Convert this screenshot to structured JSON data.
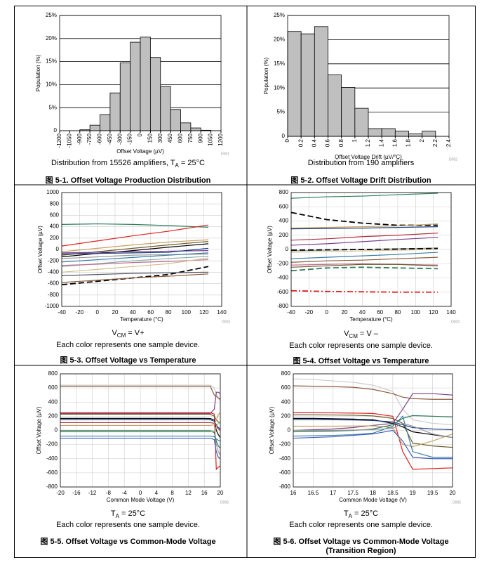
{
  "chart_data": [
    {
      "type": "histogram",
      "title": "图 5-1. Offset Voltage Production Distribution",
      "caption": [
        "Distribution from 15526 amplifiers, T",
        "A",
        " = 25°C"
      ],
      "xlabel": "Offset Voltage (µV)",
      "ylabel": "Population (%)",
      "watermark": "D001",
      "bins": [
        -1200,
        -1050,
        -900,
        -750,
        -600,
        -450,
        -300,
        -150,
        0,
        150,
        300,
        450,
        600,
        750,
        900,
        1050,
        1200
      ],
      "values": [
        0,
        0,
        0.2,
        1.2,
        3.5,
        8.2,
        14.7,
        19.2,
        20.3,
        15.9,
        9.6,
        4.6,
        1.7,
        0.6,
        0.1,
        0
      ],
      "color": "#bfbfbf",
      "grid": "y",
      "xlim": [
        -1200,
        1200
      ],
      "xticks": [
        -1200,
        -1050,
        -900,
        -750,
        -600,
        -450,
        -300,
        -150,
        0,
        150,
        300,
        450,
        600,
        750,
        900,
        1050,
        1200
      ],
      "ylim": [
        0,
        25
      ],
      "yticks": [
        0,
        {
          "value": 5,
          "label": "5%"
        },
        {
          "value": 10,
          "label": "10%"
        },
        {
          "value": 15,
          "label": "15%"
        },
        {
          "value": 20,
          "label": "20%"
        },
        {
          "value": 25,
          "label": "25%"
        }
      ]
    },
    {
      "type": "histogram",
      "title": "图 5-2. Offset Voltage Drift Distribution",
      "caption": [
        "Distribution from 190 amplifiers"
      ],
      "xlabel": "Offset Voltage Drift (µV/°C)",
      "ylabel": "Population (%)",
      "watermark": "D002",
      "bins": [
        0,
        0.2,
        0.4,
        0.6,
        0.8,
        1,
        1.2,
        1.4,
        1.6,
        1.8,
        2,
        2.2,
        2.4
      ],
      "values": [
        21.7,
        21.2,
        22.7,
        12.7,
        10.1,
        5.8,
        1.6,
        1.6,
        1.1,
        0.5,
        1.1,
        0
      ],
      "color": "#bfbfbf",
      "grid": "y",
      "xlim": [
        0,
        2.4
      ],
      "xticks": [
        0,
        0.2,
        0.4,
        0.6,
        0.8,
        1,
        1.2,
        1.4,
        1.6,
        1.8,
        2,
        2.2,
        2.4
      ],
      "ylim": [
        0,
        25
      ],
      "yticks": [
        0,
        {
          "value": 5,
          "label": "5%"
        },
        {
          "value": 10,
          "label": "10%"
        },
        {
          "value": 15,
          "label": "15%"
        },
        {
          "value": 20,
          "label": "20%"
        },
        {
          "value": 25,
          "label": "25%"
        }
      ]
    },
    {
      "type": "line",
      "title": "图 5-3. Offset Voltage vs Temperature",
      "caption": [
        "V",
        "CM",
        " = V+"
      ],
      "note": "Each color represents one sample device.",
      "xlabel": "Temperature (°C)",
      "ylabel": "Offset Voltage (µV)",
      "watermark": "D003",
      "grid": "both",
      "xlim": [
        -40,
        140
      ],
      "xticks": [
        -40,
        -20,
        0,
        20,
        40,
        60,
        80,
        100,
        120,
        140
      ],
      "ylim": [
        -1000,
        1000
      ],
      "yticks": [
        -1000,
        -800,
        -600,
        -400,
        -200,
        0,
        200,
        400,
        600,
        800,
        1000
      ],
      "x": [
        -40,
        0,
        40,
        80,
        125
      ],
      "series": [
        {
          "color": "#2e7d5b",
          "values": [
            440,
            450,
            440,
            420,
            390
          ]
        },
        {
          "color": "#e02020",
          "values": [
            60,
            150,
            240,
            320,
            430
          ]
        },
        {
          "color": "#c8a060",
          "values": [
            -40,
            20,
            80,
            130,
            170
          ]
        },
        {
          "color": "#6b5a2a",
          "values": [
            -100,
            -40,
            20,
            80,
            140
          ]
        },
        {
          "color": "#000000",
          "values": [
            -130,
            -70,
            -20,
            40,
            100
          ]
        },
        {
          "color": "#7b3f8c",
          "values": [
            -60,
            -50,
            -40,
            -30,
            -20
          ]
        },
        {
          "color": "#1f3f7f",
          "values": [
            -80,
            -70,
            -60,
            -50,
            20
          ]
        },
        {
          "color": "#999999",
          "values": [
            -160,
            -130,
            -100,
            -90,
            -80
          ]
        },
        {
          "color": "#3a7ca5",
          "values": [
            -220,
            -180,
            -140,
            -100,
            -60
          ]
        },
        {
          "color": "#88aaaa",
          "values": [
            -300,
            -250,
            -200,
            -160,
            -120
          ]
        },
        {
          "color": "#c07090",
          "values": [
            -280,
            -260,
            -230,
            -210,
            -180
          ]
        },
        {
          "color": "#d0c090",
          "values": [
            -400,
            -350,
            -300,
            -250,
            -150
          ]
        },
        {
          "color": "#000000",
          "style": "dashed",
          "values": [
            -620,
            -560,
            -500,
            -440,
            -300
          ]
        },
        {
          "color": "#8b5a3c",
          "values": [
            -580,
            -540,
            -500,
            -470,
            -430
          ]
        },
        {
          "color": "#555566",
          "values": [
            -460,
            -440,
            -420,
            -410,
            -400
          ]
        }
      ]
    },
    {
      "type": "line",
      "title": "图 5-4. Offset Voltage vs Temperature",
      "caption": [
        "V",
        "CM",
        " = V –"
      ],
      "note": "Each color represents one sample device.",
      "xlabel": "Temperature (°C)",
      "ylabel": "Offset Voltage (µV)",
      "watermark": "D004",
      "grid": "both",
      "xlim": [
        -40,
        140
      ],
      "xticks": [
        -40,
        -20,
        0,
        20,
        40,
        60,
        80,
        100,
        120,
        140
      ],
      "ylim": [
        -800,
        800
      ],
      "yticks": [
        -800,
        -600,
        -400,
        -200,
        0,
        200,
        400,
        600,
        800
      ],
      "x": [
        -40,
        0,
        40,
        80,
        125
      ],
      "series": [
        {
          "color": "#2e7d5b",
          "values": [
            720,
            740,
            750,
            770,
            790
          ]
        },
        {
          "color": "#000000",
          "style": "dashed",
          "values": [
            520,
            420,
            370,
            340,
            340
          ]
        },
        {
          "color": "#c8a060",
          "values": [
            300,
            310,
            320,
            330,
            360
          ]
        },
        {
          "color": "#1f3f7f",
          "values": [
            290,
            295,
            300,
            310,
            320
          ]
        },
        {
          "color": "#b03040",
          "values": [
            130,
            150,
            180,
            200,
            230
          ]
        },
        {
          "color": "#7b3f8c",
          "values": [
            60,
            80,
            110,
            140,
            170
          ]
        },
        {
          "color": "#999999",
          "values": [
            -20,
            -10,
            0,
            10,
            20
          ]
        },
        {
          "color": "#000000",
          "style": "dashed",
          "values": [
            -10,
            -5,
            0,
            5,
            15
          ]
        },
        {
          "color": "#d0c090",
          "values": [
            -40,
            -30,
            -20,
            -10,
            0
          ]
        },
        {
          "color": "#3a7ca5",
          "values": [
            -130,
            -110,
            -90,
            -70,
            -40
          ]
        },
        {
          "color": "#8b5a3c",
          "values": [
            -180,
            -160,
            -150,
            -130,
            -110
          ]
        },
        {
          "color": "#c07090",
          "values": [
            -220,
            -210,
            -200,
            -210,
            -220
          ]
        },
        {
          "color": "#6b5a2a",
          "values": [
            -250,
            -230,
            -210,
            -210,
            -230
          ]
        },
        {
          "color": "#2e7d5b",
          "style": "dashed",
          "values": [
            -300,
            -260,
            -250,
            -260,
            -270
          ]
        },
        {
          "color": "#e02020",
          "style": "dashdot",
          "values": [
            -580,
            -590,
            -595,
            -600,
            -600
          ]
        }
      ]
    },
    {
      "type": "line",
      "title": "图 5-5. Offset Voltage vs Common-Mode Voltage",
      "caption": [
        "T",
        "A",
        " = 25°C"
      ],
      "note": "Each color represents one sample device.",
      "xlabel": "Common Mode Voltage (V)",
      "ylabel": "Offset Voltage (µV)",
      "watermark": "D006",
      "grid": "both",
      "xlim": [
        -20,
        20
      ],
      "xticks": [
        -20,
        -16,
        -12,
        -8,
        -4,
        0,
        4,
        8,
        12,
        16,
        20
      ],
      "ylim": [
        -800,
        800
      ],
      "yticks": [
        -800,
        -600,
        -400,
        -200,
        0,
        200,
        400,
        600,
        800
      ],
      "x": [
        -20,
        -10,
        0,
        10,
        16,
        17.5,
        18.5,
        19,
        19.5,
        20
      ],
      "series": [
        {
          "color": "#cccccc",
          "values": [
            640,
            640,
            640,
            640,
            640,
            640,
            600,
            520,
            450,
            420
          ]
        },
        {
          "color": "#8b5a3c",
          "values": [
            625,
            625,
            625,
            625,
            625,
            625,
            500,
            480,
            460,
            440
          ]
        },
        {
          "color": "#7b3f8c",
          "values": [
            240,
            240,
            240,
            240,
            240,
            240,
            300,
            540,
            540,
            520
          ]
        },
        {
          "color": "#e02020",
          "values": [
            250,
            250,
            250,
            250,
            250,
            250,
            230,
            -550,
            -520,
            -500
          ]
        },
        {
          "color": "#6b5a2a",
          "values": [
            230,
            230,
            230,
            230,
            230,
            228,
            200,
            150,
            120,
            100
          ]
        },
        {
          "color": "#000000",
          "values": [
            170,
            170,
            170,
            170,
            170,
            168,
            150,
            0,
            -60,
            -100
          ]
        },
        {
          "color": "#1f3f7f",
          "values": [
            150,
            150,
            150,
            150,
            150,
            150,
            130,
            80,
            40,
            20
          ]
        },
        {
          "color": "#b03040",
          "values": [
            110,
            110,
            110,
            110,
            110,
            110,
            100,
            60,
            20,
            0
          ]
        },
        {
          "color": "#c8a060",
          "values": [
            70,
            70,
            70,
            70,
            70,
            70,
            80,
            150,
            220,
            250
          ]
        },
        {
          "color": "#999999",
          "values": [
            0,
            0,
            0,
            0,
            0,
            0,
            -20,
            -200,
            -300,
            -350
          ]
        },
        {
          "color": "#2e7d5b",
          "values": [
            -10,
            -10,
            -10,
            -10,
            -10,
            -10,
            -30,
            -150,
            -220,
            -250
          ]
        },
        {
          "color": "#99cc99",
          "values": [
            -20,
            -20,
            -20,
            -20,
            -20,
            -20,
            -10,
            50,
            100,
            120
          ]
        },
        {
          "color": "#3a7ca5",
          "values": [
            -80,
            -80,
            -80,
            -80,
            -80,
            -80,
            -90,
            -120,
            -140,
            -150
          ]
        },
        {
          "color": "#4060c0",
          "values": [
            -110,
            -110,
            -110,
            -110,
            -110,
            -110,
            -130,
            -300,
            -380,
            -400
          ]
        }
      ]
    },
    {
      "type": "line",
      "title": "图 5-6. Offset Voltage vs Common-Mode Voltage (Transition Region)",
      "caption": [
        "T",
        "A",
        " = 25°C"
      ],
      "note": "Each color represents one sample device.",
      "xlabel": "Common Mode Voltage (V)",
      "ylabel": "Offset Voltage (µV)",
      "watermark": "D005",
      "grid": "both",
      "xlim": [
        16,
        20
      ],
      "xticks": [
        16,
        16.5,
        17,
        17.5,
        18,
        18.5,
        19,
        19.5,
        20
      ],
      "ylim": [
        -800,
        800
      ],
      "yticks": [
        -800,
        -600,
        -400,
        -200,
        0,
        200,
        400,
        600,
        800
      ],
      "x": [
        16,
        16.5,
        17,
        17.5,
        18,
        18.5,
        18.75,
        19,
        19.5,
        20
      ],
      "series": [
        {
          "color": "#cccccc",
          "values": [
            730,
            720,
            700,
            680,
            640,
            550,
            300,
            150,
            100,
            80
          ]
        },
        {
          "color": "#8b5a3c",
          "values": [
            630,
            625,
            620,
            610,
            580,
            520,
            470,
            450,
            440,
            440
          ]
        },
        {
          "color": "#7b3f8c",
          "values": [
            0,
            10,
            20,
            40,
            70,
            100,
            300,
            520,
            520,
            500
          ]
        },
        {
          "color": "#e02020",
          "values": [
            250,
            250,
            248,
            245,
            240,
            200,
            -300,
            -550,
            -540,
            -530
          ]
        },
        {
          "color": "#6b5a2a",
          "values": [
            220,
            220,
            218,
            215,
            205,
            170,
            100,
            -180,
            -220,
            -240
          ]
        },
        {
          "color": "#000000",
          "values": [
            170,
            170,
            165,
            160,
            150,
            100,
            50,
            -20,
            -60,
            -100
          ]
        },
        {
          "color": "#1f3f7f",
          "values": [
            150,
            150,
            150,
            148,
            140,
            120,
            80,
            40,
            20,
            10
          ]
        },
        {
          "color": "#c8a060",
          "values": [
            60,
            60,
            60,
            62,
            65,
            40,
            -200,
            -230,
            -150,
            -50
          ]
        },
        {
          "color": "#2e7d5b",
          "values": [
            -20,
            -15,
            -10,
            0,
            20,
            80,
            170,
            210,
            200,
            190
          ]
        },
        {
          "color": "#3a7ca5",
          "values": [
            -80,
            -75,
            -70,
            -60,
            -40,
            60,
            200,
            -300,
            -380,
            -380
          ]
        },
        {
          "color": "#4060c0",
          "values": [
            -110,
            -100,
            -90,
            -70,
            -50,
            0,
            -150,
            -380,
            -400,
            -400
          ]
        },
        {
          "color": "#999999",
          "values": [
            0,
            0,
            0,
            5,
            10,
            30,
            100,
            60,
            -50,
            -100
          ]
        }
      ]
    }
  ]
}
